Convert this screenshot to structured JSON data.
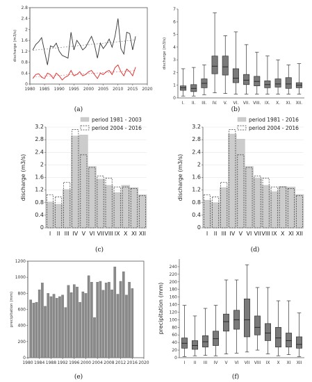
{
  "chart_data": [
    {
      "type": "line",
      "caption": "(a)",
      "ylabel": "discharge (m3/s)",
      "ylim": [
        0,
        2.8
      ],
      "yticks": [
        "0",
        "0.4",
        "0.8",
        "1.2",
        "1.6",
        "2",
        "2.4",
        "2.8"
      ],
      "xlim": [
        1980,
        2020
      ],
      "xticks": [
        "1980",
        "1985",
        "1990",
        "1995",
        "2000",
        "2005",
        "2010",
        "2015",
        "2020"
      ],
      "series": [
        {
          "color": "#333333",
          "x": [
            1981,
            1982,
            1983,
            1984,
            1985,
            1986,
            1987,
            1988,
            1989,
            1990,
            1991,
            1992,
            1993,
            1994,
            1995,
            1996,
            1997,
            1998,
            1999,
            2000,
            2001,
            2002,
            2003,
            2004,
            2005,
            2006,
            2007,
            2008,
            2009,
            2010,
            2011,
            2012,
            2013,
            2014,
            2015,
            2016
          ],
          "y": [
            1.25,
            1.45,
            1.55,
            1.7,
            1.2,
            0.7,
            1.4,
            1.35,
            1.5,
            1.2,
            1.05,
            1.0,
            0.95,
            1.9,
            1.25,
            1.6,
            1.45,
            1.25,
            1.35,
            1.55,
            1.75,
            1.45,
            0.95,
            1.5,
            1.3,
            1.45,
            1.65,
            1.35,
            1.75,
            2.4,
            1.3,
            1.1,
            1.9,
            1.85,
            1.25,
            1.75
          ]
        },
        {
          "color": "#e02020",
          "x": [
            1981,
            1982,
            1983,
            1984,
            1985,
            1986,
            1987,
            1988,
            1989,
            1990,
            1991,
            1992,
            1993,
            1994,
            1995,
            1996,
            1997,
            1998,
            1999,
            2000,
            2001,
            2002,
            2003,
            2004,
            2005,
            2006,
            2007,
            2008,
            2009,
            2010,
            2011,
            2012,
            2013,
            2014,
            2015,
            2016
          ],
          "y": [
            0.2,
            0.35,
            0.38,
            0.25,
            0.2,
            0.4,
            0.35,
            0.2,
            0.4,
            0.3,
            0.15,
            0.25,
            0.3,
            0.5,
            0.3,
            0.35,
            0.45,
            0.3,
            0.35,
            0.45,
            0.5,
            0.35,
            0.2,
            0.4,
            0.35,
            0.45,
            0.5,
            0.35,
            0.6,
            0.7,
            0.45,
            0.3,
            0.55,
            0.45,
            0.3,
            0.62
          ]
        }
      ]
    },
    {
      "type": "box",
      "caption": "(b)",
      "ylabel": "discharge (m3/s)",
      "ylim": [
        0,
        7
      ],
      "yticks": [
        "0",
        "1",
        "2",
        "3",
        "4",
        "5",
        "6",
        "7"
      ],
      "categories": [
        "I.",
        "II.",
        "III.",
        "IV.",
        "V.",
        "VI.",
        "VII.",
        "VIII.",
        "IX.",
        "X.",
        "XI.",
        "XII."
      ],
      "boxes": [
        {
          "min": 0.15,
          "q1": 0.6,
          "med": 0.8,
          "q3": 0.95,
          "max": 2.3
        },
        {
          "min": 0.15,
          "q1": 0.5,
          "med": 0.75,
          "q3": 1.05,
          "max": 2.4
        },
        {
          "min": 0.25,
          "q1": 0.8,
          "med": 1.15,
          "q3": 1.5,
          "max": 2.6
        },
        {
          "min": 0.4,
          "q1": 1.9,
          "med": 2.5,
          "q3": 3.3,
          "max": 6.7
        },
        {
          "min": 0.35,
          "q1": 1.8,
          "med": 2.45,
          "q3": 3.3,
          "max": 4.9
        },
        {
          "min": 0.3,
          "q1": 1.2,
          "med": 1.55,
          "q3": 2.3,
          "max": 5.2
        },
        {
          "min": 0.3,
          "q1": 1.05,
          "med": 1.4,
          "q3": 1.85,
          "max": 4.2
        },
        {
          "min": 0.3,
          "q1": 0.95,
          "med": 1.3,
          "q3": 1.7,
          "max": 3.6
        },
        {
          "min": 0.3,
          "q1": 0.8,
          "med": 1.05,
          "q3": 1.35,
          "max": 3.3
        },
        {
          "min": 0.3,
          "q1": 0.85,
          "med": 1.1,
          "q3": 1.5,
          "max": 3.0
        },
        {
          "min": 0.3,
          "q1": 0.75,
          "med": 1.1,
          "q3": 1.6,
          "max": 2.6
        },
        {
          "min": 0.3,
          "q1": 0.8,
          "med": 1.0,
          "q3": 1.2,
          "max": 2.7
        }
      ]
    },
    {
      "type": "bar",
      "caption": "(c)",
      "ylabel": "discharge (m3/s)",
      "ylim": [
        0,
        3.2
      ],
      "yticks": [
        "0",
        "0.4",
        "0.8",
        "1.2",
        "1.6",
        "2",
        "2.4",
        "2.8",
        "3.2"
      ],
      "categories": [
        "I",
        "II",
        "III",
        "IV",
        "V",
        "VI",
        "VII",
        "VIII",
        "IX",
        "X",
        "XI",
        "XII"
      ],
      "series": [
        {
          "name": "period 1981 - 2003",
          "values": [
            0.82,
            0.75,
            1.22,
            2.92,
            2.95,
            1.95,
            1.55,
            1.35,
            1.12,
            1.35,
            1.28,
            1.05
          ]
        },
        {
          "name": "period 2004 - 2016",
          "values": [
            1.05,
            0.98,
            1.45,
            3.12,
            2.32,
            1.92,
            1.65,
            1.58,
            1.3,
            1.3,
            1.25,
            1.02
          ]
        }
      ]
    },
    {
      "type": "bar",
      "caption": "(d)",
      "ylabel": "discharge (m3/s)",
      "ylim": [
        0,
        3.2
      ],
      "yticks": [
        "0",
        "0.4",
        "0.8",
        "1.2",
        "1.6",
        "2",
        "2.4",
        "2.8",
        "3.2"
      ],
      "categories": [
        "I",
        "II",
        "III",
        "IV",
        "V",
        "VI",
        "VII",
        "VIII",
        "IX",
        "X",
        "XI",
        "XII"
      ],
      "series": [
        {
          "name": "period 1981 - 2016",
          "values": [
            0.88,
            0.8,
            1.28,
            2.98,
            2.82,
            1.95,
            1.58,
            1.35,
            1.15,
            1.32,
            1.3,
            1.06
          ]
        },
        {
          "name": "period 2004 - 2016",
          "values": [
            1.05,
            0.98,
            1.45,
            3.12,
            2.32,
            1.92,
            1.65,
            1.58,
            1.3,
            1.3,
            1.25,
            1.02
          ]
        }
      ]
    },
    {
      "type": "bar",
      "caption": "(e)",
      "ylabel": "precipitation (mm)",
      "ylim": [
        0,
        1200
      ],
      "yticks": [
        "0",
        "200",
        "400",
        "600",
        "800",
        "1000",
        "1200"
      ],
      "xticks": [
        "1980",
        "1984",
        "1988",
        "1992",
        "1996",
        "2000",
        "2004",
        "2008",
        "2012",
        "2016",
        "2020"
      ],
      "x": [
        1981,
        1982,
        1983,
        1984,
        1985,
        1986,
        1987,
        1988,
        1989,
        1990,
        1991,
        1992,
        1993,
        1994,
        1995,
        1996,
        1997,
        1998,
        1999,
        2000,
        2001,
        2002,
        2003,
        2004,
        2005,
        2006,
        2007,
        2008,
        2009,
        2010,
        2011,
        2012,
        2013,
        2014,
        2015,
        2016
      ],
      "values": [
        720,
        680,
        690,
        845,
        930,
        640,
        800,
        760,
        790,
        740,
        760,
        780,
        625,
        900,
        810,
        910,
        880,
        690,
        820,
        800,
        1020,
        940,
        500,
        940,
        950,
        840,
        930,
        940,
        845,
        1130,
        790,
        950,
        1070,
        780,
        940,
        860
      ]
    },
    {
      "type": "box",
      "caption": "(f)",
      "ylabel": "precipitation (mm)",
      "ylim": [
        0,
        260
      ],
      "yticks": [
        "0",
        "20",
        "40",
        "60",
        "80",
        "100",
        "120",
        "140",
        "160",
        "180",
        "200",
        "220",
        "240"
      ],
      "categories": [
        "I",
        "II",
        "III",
        "IV",
        "V",
        "VI",
        "VII",
        "VIII",
        "IX",
        "X",
        "XI",
        "XII"
      ],
      "boxes": [
        {
          "min": 3,
          "q1": 25,
          "med": 38,
          "q3": 52,
          "max": 138
        },
        {
          "min": 5,
          "q1": 22,
          "med": 32,
          "q3": 45,
          "max": 110
        },
        {
          "min": 6,
          "q1": 28,
          "med": 42,
          "q3": 58,
          "max": 130
        },
        {
          "min": 5,
          "q1": 32,
          "med": 50,
          "q3": 70,
          "max": 138
        },
        {
          "min": 10,
          "q1": 70,
          "med": 95,
          "q3": 115,
          "max": 205
        },
        {
          "min": 12,
          "q1": 75,
          "med": 100,
          "q3": 125,
          "max": 205
        },
        {
          "min": 15,
          "q1": 55,
          "med": 100,
          "q3": 155,
          "max": 245
        },
        {
          "min": 20,
          "q1": 60,
          "med": 80,
          "q3": 110,
          "max": 185
        },
        {
          "min": 10,
          "q1": 45,
          "med": 65,
          "q3": 90,
          "max": 185
        },
        {
          "min": 5,
          "q1": 28,
          "med": 52,
          "q3": 80,
          "max": 150
        },
        {
          "min": 8,
          "q1": 28,
          "med": 45,
          "q3": 65,
          "max": 150
        },
        {
          "min": 3,
          "q1": 25,
          "med": 35,
          "q3": 55,
          "max": 118
        }
      ]
    }
  ]
}
